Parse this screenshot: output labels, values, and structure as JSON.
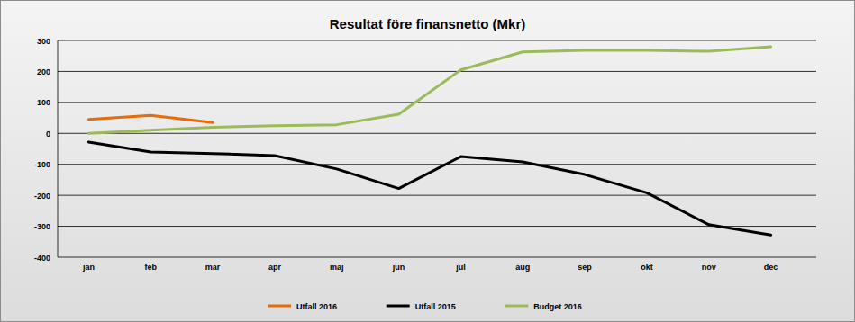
{
  "chart_data": {
    "type": "line",
    "title": "Resultat före finansnetto (Mkr)",
    "categories": [
      "jan",
      "feb",
      "mar",
      "apr",
      "maj",
      "jun",
      "jul",
      "aug",
      "sep",
      "okt",
      "nov",
      "dec"
    ],
    "series": [
      {
        "name": "Utfall 2016",
        "color": "#e46c0a",
        "values": [
          45,
          58,
          35,
          null,
          null,
          null,
          null,
          null,
          null,
          null,
          null,
          null
        ]
      },
      {
        "name": "Utfall 2015",
        "color": "#000000",
        "values": [
          -28,
          -60,
          -65,
          -72,
          -115,
          -178,
          -75,
          -92,
          -133,
          -192,
          -295,
          -328
        ]
      },
      {
        "name": "Budget 2016",
        "color": "#9bbb59",
        "values": [
          0,
          10,
          20,
          25,
          28,
          62,
          205,
          263,
          268,
          268,
          265,
          280
        ]
      }
    ],
    "ylim": [
      -400,
      300
    ],
    "yticks": [
      -400,
      -300,
      -200,
      -100,
      0,
      100,
      200,
      300
    ],
    "grid": true,
    "legend": "bottom"
  }
}
